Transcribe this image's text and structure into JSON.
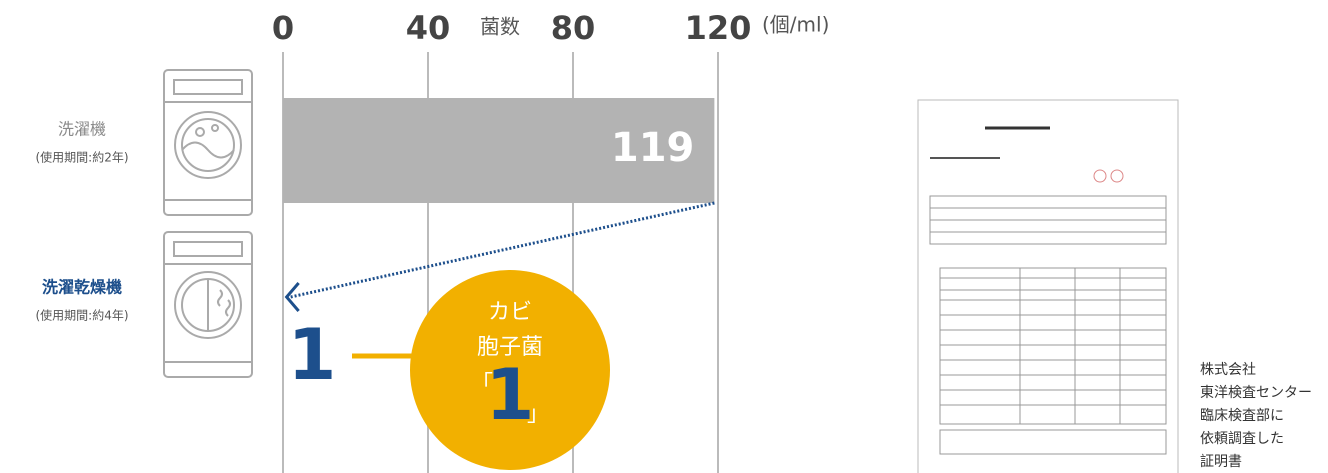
{
  "chart_data": {
    "type": "bar",
    "orientation": "horizontal",
    "categories": [
      "洗濯機",
      "洗濯乾燥機"
    ],
    "category_notes": [
      "(使用期間:約2年)",
      "(使用期間:約4年)"
    ],
    "category_colors": [
      "#8a8a8a",
      "#1d4f8c"
    ],
    "values": [
      119,
      1
    ],
    "color": "#b3b3b3",
    "xlabel": "菌数",
    "unit": "(個/ml)",
    "xlim": [
      0,
      120
    ],
    "xticks": [
      0,
      40,
      80,
      120
    ],
    "grid": true,
    "callout": {
      "lines": [
        "カビ",
        "胞子菌"
      ],
      "brackets": [
        "「",
        "」"
      ],
      "color": "#f2b000"
    },
    "source_note": [
      "株式会社",
      "東洋検査センター",
      "臨床検査部に",
      "依頼調査した",
      "証明書"
    ]
  }
}
